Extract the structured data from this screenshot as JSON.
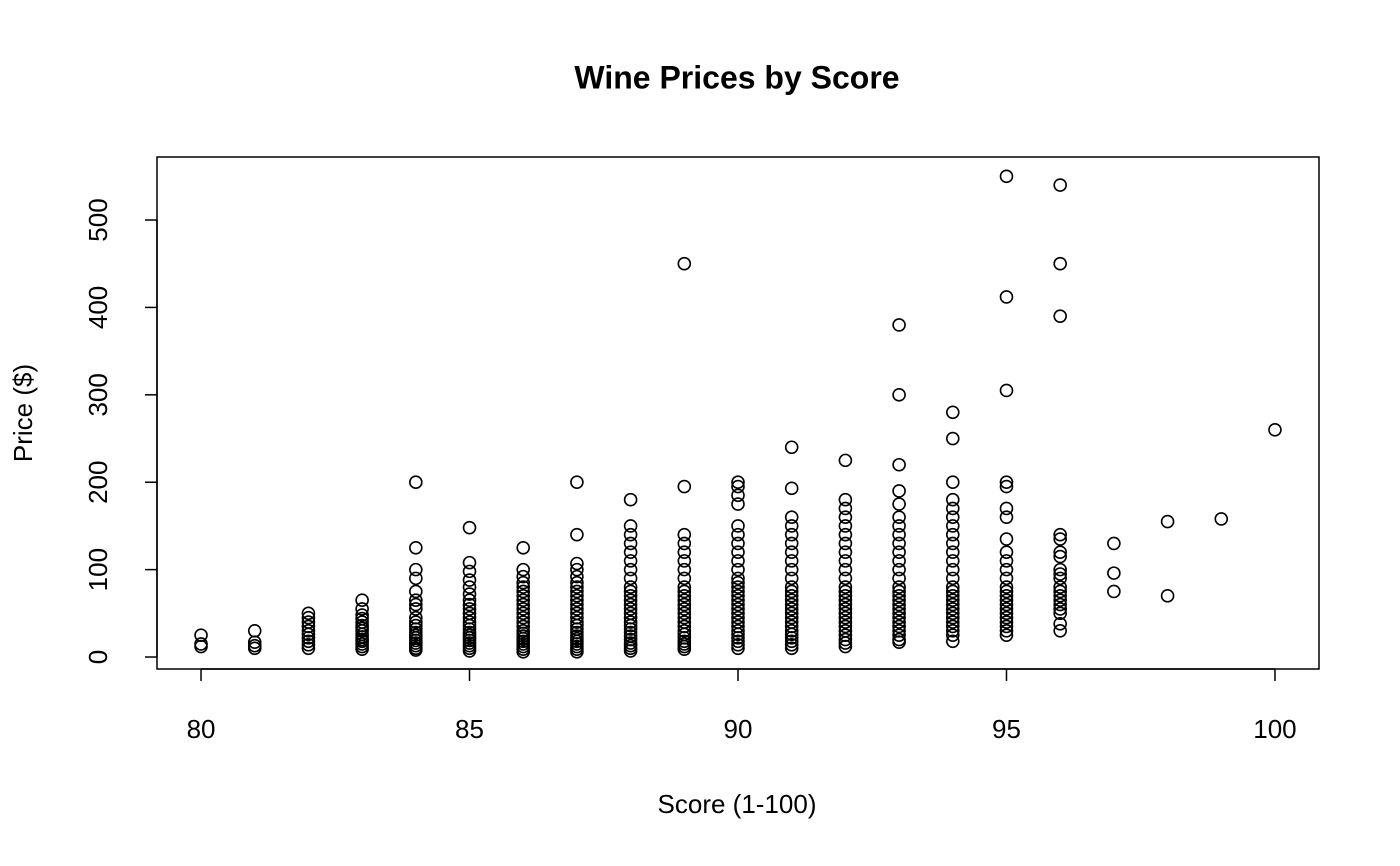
{
  "chart_data": {
    "type": "scatter",
    "title": "Wine Prices by Score",
    "x_label": "Score (1-100)",
    "y_label": "Price ($)",
    "color": "#000000",
    "x": [
      80,
      80,
      80,
      81,
      81,
      81,
      81,
      82,
      82,
      82,
      82,
      82,
      82,
      82,
      82,
      82,
      82,
      83,
      83,
      83,
      83,
      83,
      83,
      83,
      83,
      83,
      83,
      83,
      83,
      83,
      83,
      83,
      84,
      84,
      84,
      84,
      84,
      84,
      84,
      84,
      84,
      84,
      84,
      84,
      84,
      84,
      84,
      84,
      84,
      84,
      84,
      84,
      85,
      85,
      85,
      85,
      85,
      85,
      85,
      85,
      85,
      85,
      85,
      85,
      85,
      85,
      85,
      85,
      85,
      85,
      85,
      85,
      85,
      85,
      86,
      86,
      86,
      86,
      86,
      86,
      86,
      86,
      86,
      86,
      86,
      86,
      86,
      86,
      86,
      86,
      86,
      86,
      86,
      86,
      86,
      86,
      86,
      87,
      87,
      87,
      87,
      87,
      87,
      87,
      87,
      87,
      87,
      87,
      87,
      87,
      87,
      87,
      87,
      87,
      87,
      87,
      87,
      87,
      87,
      87,
      87,
      87,
      88,
      88,
      88,
      88,
      88,
      88,
      88,
      88,
      88,
      88,
      88,
      88,
      88,
      88,
      88,
      88,
      88,
      88,
      88,
      88,
      88,
      88,
      88,
      88,
      88,
      88,
      89,
      89,
      89,
      89,
      89,
      89,
      89,
      89,
      89,
      89,
      89,
      89,
      89,
      89,
      89,
      89,
      89,
      89,
      89,
      89,
      89,
      89,
      89,
      89,
      89,
      90,
      90,
      90,
      90,
      90,
      90,
      90,
      90,
      90,
      90,
      90,
      90,
      90,
      90,
      90,
      90,
      90,
      90,
      90,
      90,
      90,
      90,
      90,
      90,
      90,
      90,
      90,
      90,
      91,
      91,
      91,
      91,
      91,
      91,
      91,
      91,
      91,
      91,
      91,
      91,
      91,
      91,
      91,
      91,
      91,
      91,
      91,
      91,
      91,
      91,
      91,
      91,
      91,
      91,
      92,
      92,
      92,
      92,
      92,
      92,
      92,
      92,
      92,
      92,
      92,
      92,
      92,
      92,
      92,
      92,
      92,
      92,
      92,
      92,
      92,
      92,
      92,
      92,
      92,
      92,
      93,
      93,
      93,
      93,
      93,
      93,
      93,
      93,
      93,
      93,
      93,
      93,
      93,
      93,
      93,
      93,
      93,
      93,
      93,
      93,
      93,
      93,
      93,
      93,
      93,
      93,
      93,
      94,
      94,
      94,
      94,
      94,
      94,
      94,
      94,
      94,
      94,
      94,
      94,
      94,
      94,
      94,
      94,
      94,
      94,
      94,
      94,
      94,
      94,
      94,
      94,
      94,
      94,
      95,
      95,
      95,
      95,
      95,
      95,
      95,
      95,
      95,
      95,
      95,
      95,
      95,
      95,
      95,
      95,
      95,
      95,
      95,
      95,
      95,
      95,
      95,
      95,
      96,
      96,
      96,
      96,
      96,
      96,
      96,
      96,
      96,
      96,
      96,
      96,
      96,
      96,
      96,
      96,
      96,
      96,
      96,
      97,
      97,
      97,
      98,
      98,
      99,
      100
    ],
    "y": [
      12,
      15,
      25,
      10,
      13,
      17,
      30,
      10,
      14,
      18,
      22,
      26,
      30,
      35,
      40,
      45,
      50,
      9,
      12,
      15,
      18,
      20,
      23,
      26,
      30,
      33,
      36,
      40,
      44,
      48,
      55,
      65,
      8,
      10,
      13,
      16,
      19,
      22,
      25,
      28,
      32,
      36,
      40,
      45,
      55,
      60,
      65,
      75,
      90,
      100,
      125,
      200,
      7,
      10,
      13,
      16,
      19,
      22,
      25,
      28,
      32,
      36,
      40,
      45,
      50,
      55,
      60,
      65,
      72,
      80,
      88,
      98,
      108,
      148,
      6,
      9,
      12,
      15,
      18,
      21,
      24,
      27,
      30,
      35,
      40,
      45,
      50,
      55,
      60,
      65,
      70,
      75,
      80,
      85,
      92,
      100,
      125,
      6,
      9,
      12,
      15,
      18,
      21,
      24,
      28,
      32,
      36,
      40,
      45,
      50,
      55,
      60,
      65,
      70,
      75,
      80,
      85,
      92,
      100,
      107,
      140,
      200,
      7,
      10,
      13,
      16,
      20,
      24,
      28,
      32,
      36,
      40,
      45,
      50,
      55,
      60,
      65,
      70,
      75,
      80,
      90,
      100,
      110,
      120,
      130,
      140,
      150,
      180,
      9,
      12,
      15,
      18,
      22,
      26,
      30,
      35,
      40,
      45,
      50,
      55,
      60,
      65,
      70,
      75,
      80,
      90,
      100,
      110,
      120,
      130,
      140,
      195,
      450,
      10,
      14,
      18,
      22,
      26,
      30,
      35,
      40,
      45,
      50,
      55,
      60,
      65,
      70,
      75,
      80,
      85,
      90,
      100,
      110,
      120,
      130,
      140,
      150,
      175,
      185,
      195,
      200,
      10,
      14,
      18,
      22,
      26,
      30,
      35,
      40,
      45,
      50,
      55,
      60,
      65,
      70,
      75,
      80,
      90,
      100,
      110,
      120,
      130,
      140,
      150,
      160,
      193,
      240,
      12,
      16,
      20,
      25,
      30,
      35,
      40,
      45,
      50,
      55,
      60,
      65,
      70,
      75,
      80,
      90,
      100,
      110,
      120,
      130,
      140,
      150,
      160,
      170,
      180,
      225,
      17,
      20,
      25,
      30,
      35,
      40,
      45,
      50,
      55,
      60,
      65,
      70,
      75,
      80,
      90,
      100,
      110,
      120,
      130,
      140,
      150,
      160,
      175,
      190,
      220,
      300,
      380,
      18,
      25,
      30,
      35,
      40,
      45,
      50,
      55,
      60,
      65,
      70,
      75,
      80,
      90,
      100,
      110,
      120,
      130,
      140,
      150,
      160,
      170,
      180,
      200,
      250,
      280,
      25,
      30,
      35,
      40,
      45,
      50,
      55,
      60,
      65,
      70,
      75,
      80,
      90,
      100,
      110,
      120,
      135,
      160,
      170,
      195,
      200,
      305,
      412,
      550,
      30,
      38,
      50,
      55,
      60,
      65,
      70,
      75,
      80,
      90,
      95,
      100,
      115,
      120,
      135,
      140,
      390,
      450,
      540,
      75,
      96,
      130,
      70,
      155,
      158,
      260
    ],
    "xlim": [
      79.18,
      100.82
    ],
    "ylim": [
      -13.7,
      572.1
    ],
    "xticks": [
      80,
      85,
      90,
      95,
      100
    ],
    "yticks": [
      0,
      100,
      200,
      300,
      400,
      500
    ]
  }
}
